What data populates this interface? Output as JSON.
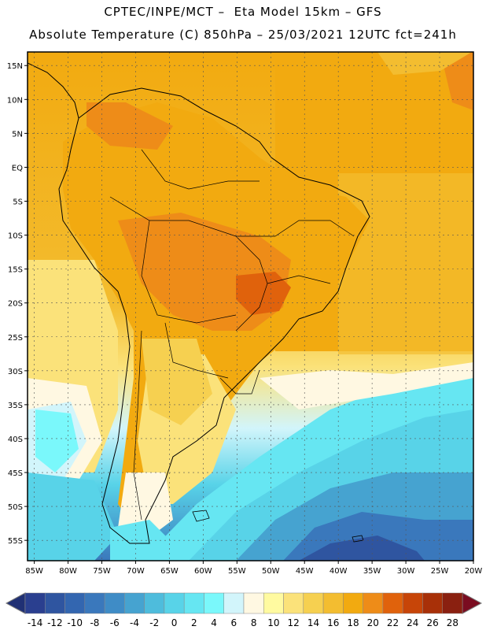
{
  "title_line1": "CPTEC/INPE/MCT –  Eta Model 15km – GFS",
  "title_line2": "Absolute Temperature (C) 850hPa – 25/03/2021 12UTC fct=241h",
  "map": {
    "lon_range": [
      -86,
      -20
    ],
    "lat_range": [
      -58,
      17
    ],
    "lat_ticks": [
      {
        "value": 15,
        "label": "15N"
      },
      {
        "value": 10,
        "label": "10N"
      },
      {
        "value": 5,
        "label": "5N"
      },
      {
        "value": 0,
        "label": "EQ"
      },
      {
        "value": -5,
        "label": "5S"
      },
      {
        "value": -10,
        "label": "10S"
      },
      {
        "value": -15,
        "label": "15S"
      },
      {
        "value": -20,
        "label": "20S"
      },
      {
        "value": -25,
        "label": "25S"
      },
      {
        "value": -30,
        "label": "30S"
      },
      {
        "value": -35,
        "label": "35S"
      },
      {
        "value": -40,
        "label": "40S"
      },
      {
        "value": -45,
        "label": "45S"
      },
      {
        "value": -50,
        "label": "50S"
      },
      {
        "value": -55,
        "label": "55S"
      }
    ],
    "lon_ticks": [
      {
        "value": -85,
        "label": "85W"
      },
      {
        "value": -80,
        "label": "80W"
      },
      {
        "value": -75,
        "label": "75W"
      },
      {
        "value": -70,
        "label": "70W"
      },
      {
        "value": -65,
        "label": "65W"
      },
      {
        "value": -60,
        "label": "60W"
      },
      {
        "value": -55,
        "label": "55W"
      },
      {
        "value": -50,
        "label": "50W"
      },
      {
        "value": -45,
        "label": "45W"
      },
      {
        "value": -40,
        "label": "40W"
      },
      {
        "value": -35,
        "label": "35W"
      },
      {
        "value": -30,
        "label": "30W"
      },
      {
        "value": -25,
        "label": "25W"
      },
      {
        "value": -20,
        "label": "20W"
      }
    ]
  },
  "colorbar": {
    "labels": [
      "-14",
      "-12",
      "-10",
      "-8",
      "-6",
      "-4",
      "-2",
      "0",
      "2",
      "4",
      "6",
      "8",
      "10",
      "12",
      "14",
      "16",
      "18",
      "20",
      "22",
      "24",
      "26",
      "28"
    ],
    "colors": [
      "#2a3f8f",
      "#2f55a0",
      "#3366b0",
      "#3a78bc",
      "#3f8cc6",
      "#46a3d0",
      "#4ebcdc",
      "#58d3e8",
      "#66e6f2",
      "#7af8fb",
      "#d2f5fb",
      "#fff8e2",
      "#fffaa0",
      "#fbe27a",
      "#f6d050",
      "#f3bd30",
      "#f2aa10",
      "#ee8c18",
      "#e0620c",
      "#c74508",
      "#a83008",
      "#8a2010"
    ],
    "low_color": "#203074",
    "high_color": "#7a0c20"
  }
}
